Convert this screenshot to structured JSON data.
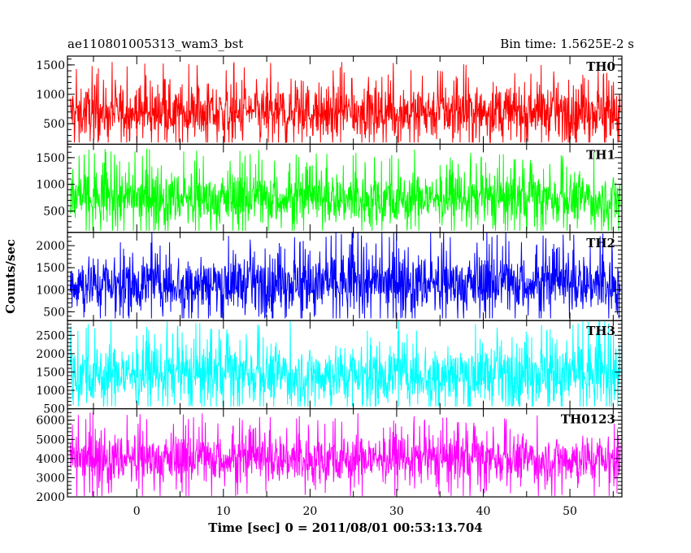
{
  "header": {
    "title": "ae110801005313_wam3_bst",
    "bin_time": "Bin time: 1.5625E-2 s"
  },
  "chart_data": {
    "type": "line",
    "title": "ae110801005313_wam3_bst",
    "subtitle": "Bin time: 1.5625E-2 s",
    "xlabel": "Time [sec] 0 = 2011/08/01 00:53:13.704",
    "ylabel": "Counts/sec",
    "xlim": [
      -8,
      56
    ],
    "x_ticks": [
      0,
      10,
      20,
      30,
      40,
      50
    ],
    "grid": false,
    "panels": [
      {
        "name": "TH0",
        "color": "#ff0000",
        "ylim": [
          150,
          1650
        ],
        "y_ticks": [
          500,
          1000,
          1500
        ],
        "x_range": [
          -7.7,
          55.8
        ],
        "level": 700,
        "min": 180,
        "max": 1640,
        "spread": 230,
        "points": 1400
      },
      {
        "name": "TH1",
        "color": "#00ff00",
        "ylim": [
          100,
          1750
        ],
        "y_ticks": [
          500,
          1000,
          1500
        ],
        "x_range": [
          -7.7,
          55.8
        ],
        "level": 740,
        "min": 130,
        "max": 1740,
        "spread": 250,
        "points": 1400
      },
      {
        "name": "TH2",
        "color": "#0000ff",
        "ylim": [
          300,
          2300
        ],
        "y_ticks": [
          500,
          1000,
          1500,
          2000
        ],
        "x_range": [
          -7.7,
          55.8
        ],
        "level": 1150,
        "min": 350,
        "max": 2290,
        "spread": 330,
        "points": 1400
      },
      {
        "name": "TH3",
        "color": "#00ffff",
        "ylim": [
          500,
          2900
        ],
        "y_ticks": [
          500,
          1000,
          1500,
          2000,
          2500
        ],
        "x_range": [
          -7.7,
          55.8
        ],
        "level": 1450,
        "min": 560,
        "max": 2880,
        "spread": 420,
        "points": 1400
      },
      {
        "name": "TH0123",
        "color": "#ff00ff",
        "ylim": [
          2000,
          6600
        ],
        "y_ticks": [
          2000,
          3000,
          4000,
          5000,
          6000
        ],
        "x_range": [
          -7.7,
          55.8
        ],
        "level": 4000,
        "min": 2050,
        "max": 6550,
        "spread": 650,
        "points": 1400
      }
    ]
  }
}
